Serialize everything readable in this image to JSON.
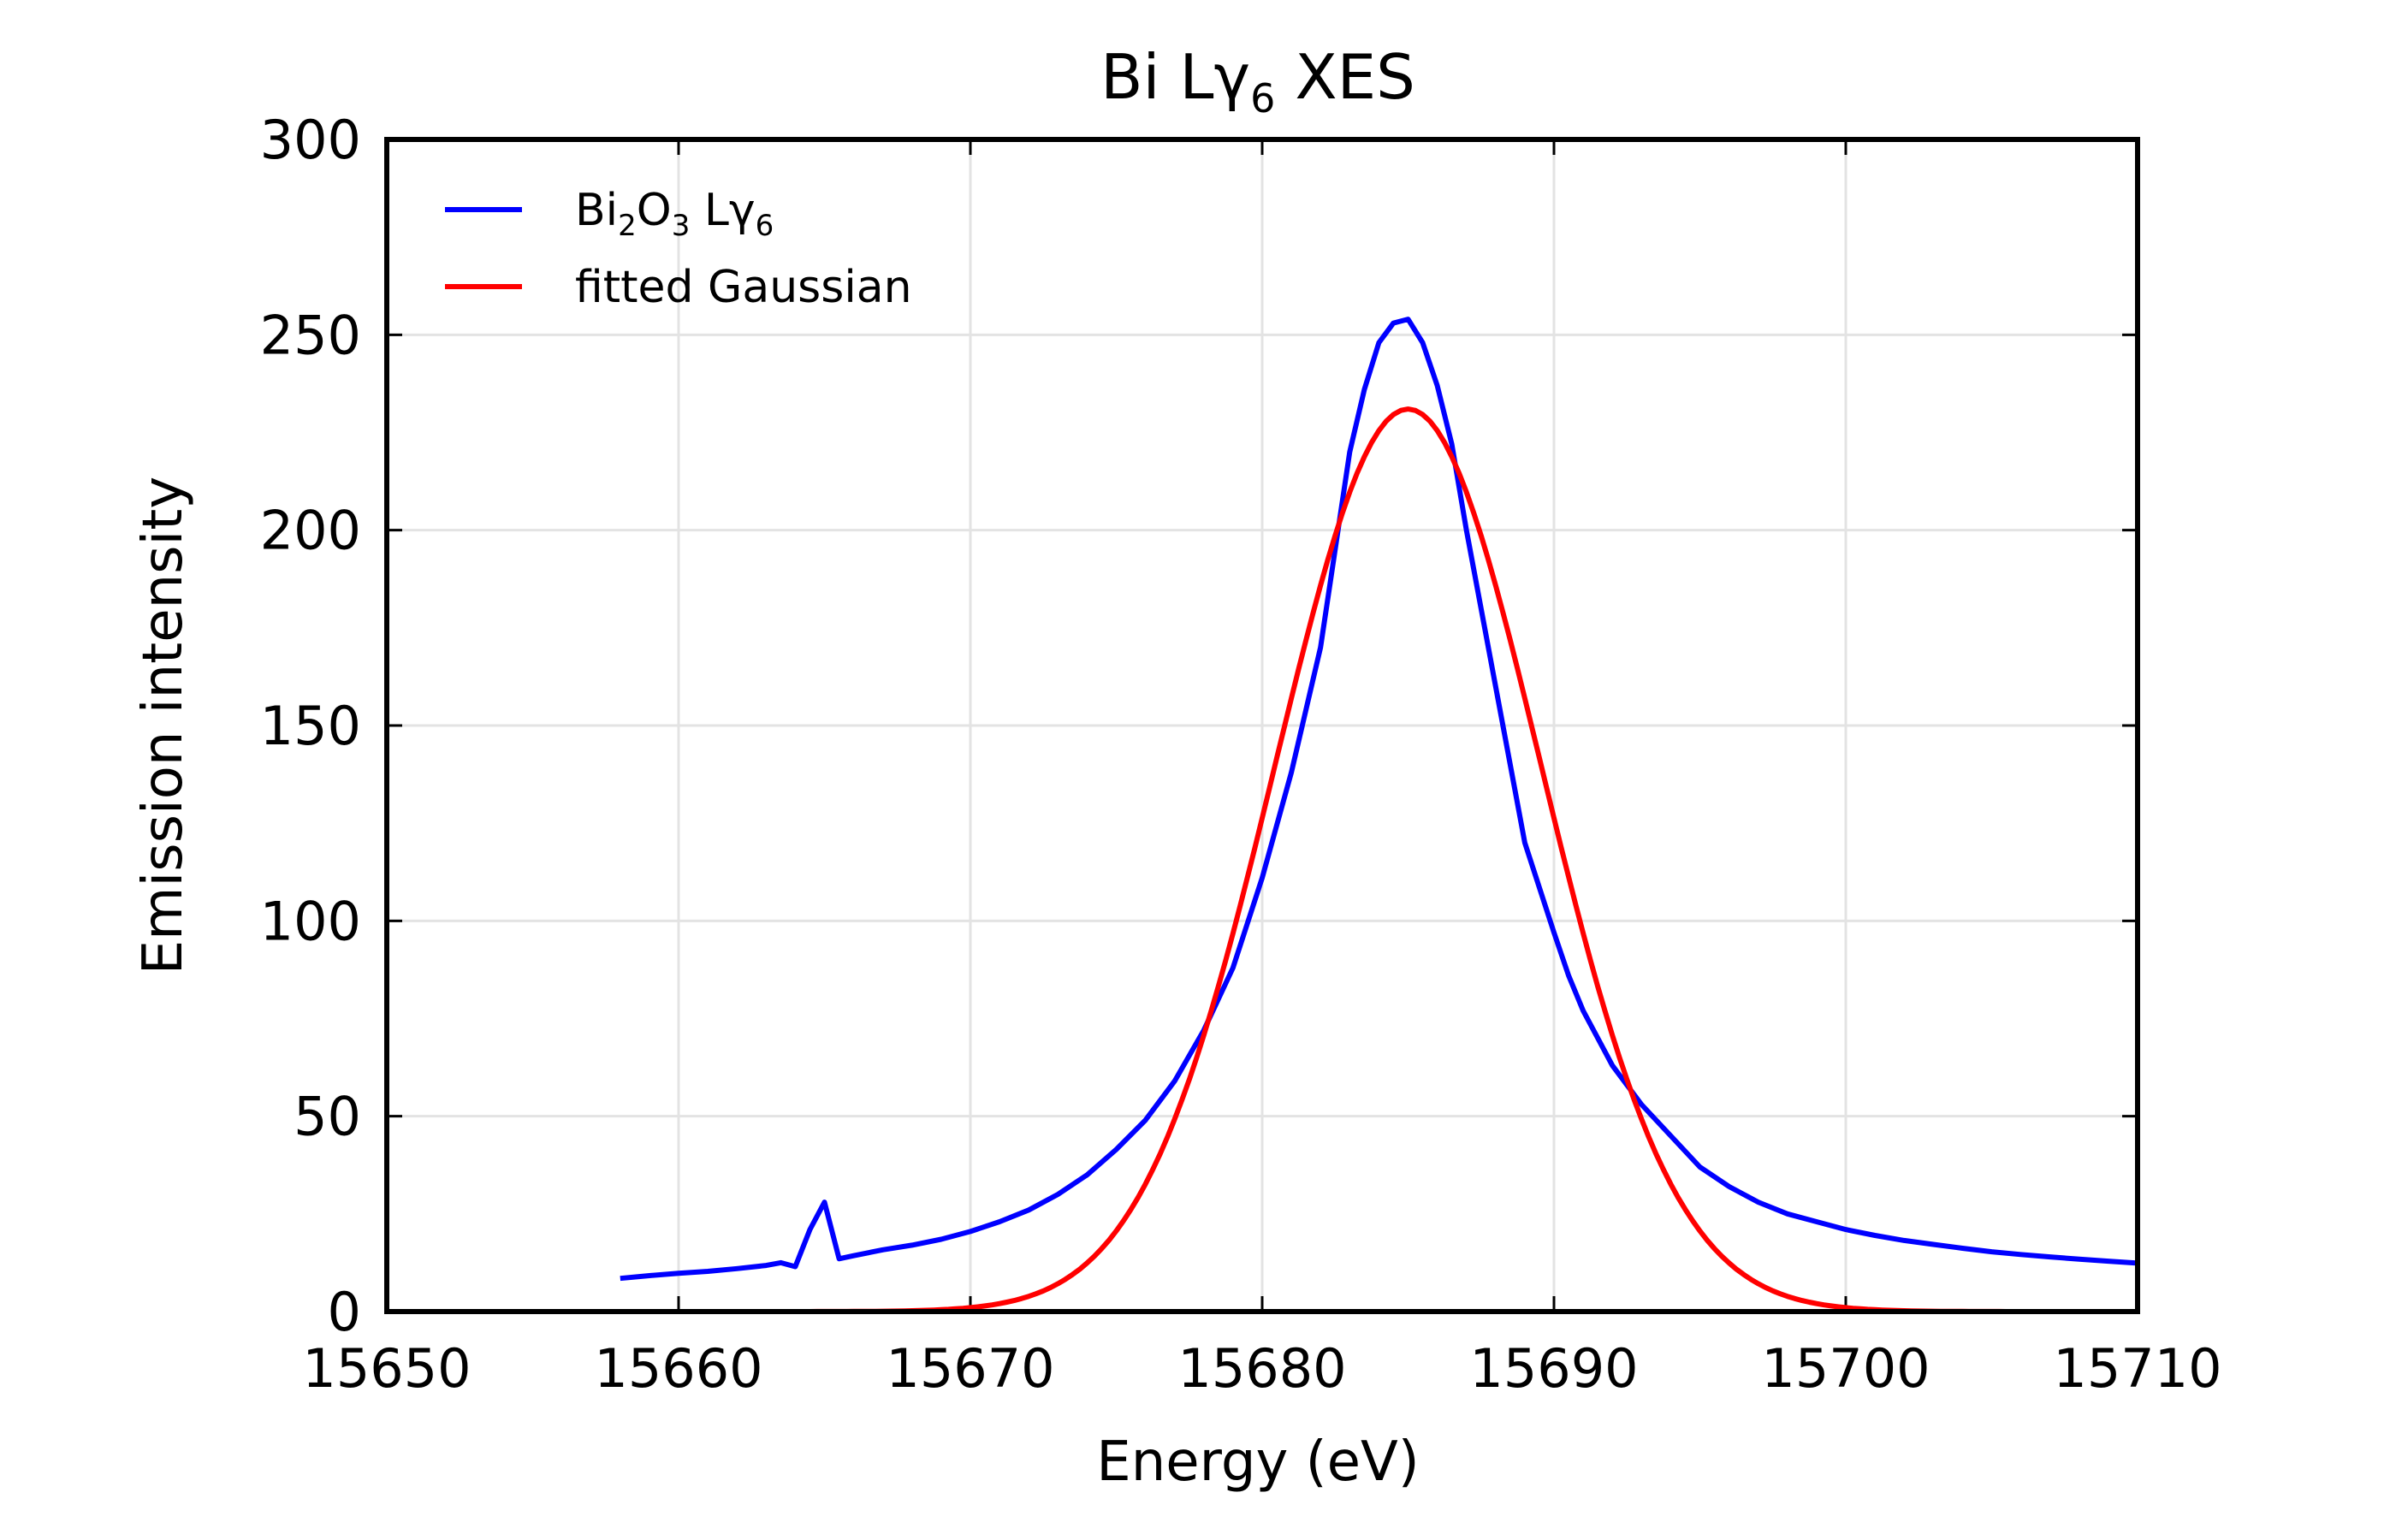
{
  "chart_data": {
    "type": "line",
    "title": {
      "pre": "Bi L",
      "symbol": "γ",
      "sub": "6",
      "post": " XES"
    },
    "xlabel": "Energy (eV)",
    "ylabel": "Emission intensity",
    "xlim": [
      15650,
      15710
    ],
    "ylim": [
      0,
      300
    ],
    "xticks": [
      15650,
      15660,
      15670,
      15680,
      15690,
      15700,
      15710
    ],
    "yticks": [
      0,
      50,
      100,
      150,
      200,
      250,
      300
    ],
    "grid": true,
    "legend_position": "top-left",
    "legend": [
      {
        "parts": [
          {
            "t": "Bi"
          },
          {
            "t": "2",
            "sub": true
          },
          {
            "t": "O"
          },
          {
            "t": "3",
            "sub": true
          },
          {
            "t": " L"
          },
          {
            "t": "γ"
          },
          {
            "t": "6",
            "sub": true
          }
        ],
        "color": "#0000ff"
      },
      {
        "parts": [
          {
            "t": "fitted Gaussian"
          }
        ],
        "color": "#ff0000"
      }
    ],
    "series": [
      {
        "color": "#0000ff",
        "x": [
          15658,
          15659,
          15660,
          15661,
          15662,
          15663,
          15663.5,
          15664,
          15664.5,
          15665,
          15665.5,
          15666,
          15667,
          15668,
          15669,
          15670,
          15671,
          15672,
          15673,
          15674,
          15675,
          15676,
          15677,
          15678,
          15679,
          15680,
          15681,
          15682,
          15683,
          15683.5,
          15684,
          15684.5,
          15685,
          15685.5,
          15686,
          15686.5,
          15687,
          15688,
          15689,
          15690,
          15690.5,
          15691,
          15692,
          15693,
          15694,
          15695,
          15696,
          15697,
          15698,
          15699,
          15700,
          15701,
          15702,
          15703,
          15704,
          15705,
          15706,
          15707,
          15708,
          15709,
          15710
        ],
        "y": [
          8.5,
          9.2,
          9.8,
          10.3,
          11.0,
          11.8,
          12.5,
          11.5,
          21,
          28,
          13.5,
          14.3,
          15.8,
          17,
          18.5,
          20.5,
          23,
          26,
          30,
          35,
          41.5,
          49,
          59,
          72,
          88,
          111,
          138,
          170,
          220,
          236,
          248,
          253,
          254,
          248,
          237,
          222,
          200,
          160,
          120,
          97,
          86,
          77,
          63,
          53,
          45,
          37,
          32,
          28,
          25,
          23,
          21,
          19.5,
          18.2,
          17.2,
          16.2,
          15.3,
          14.6,
          14,
          13.4,
          12.9,
          12.4
        ]
      },
      {
        "color": "#ff0000",
        "fit": {
          "amplitude": 231,
          "center": 15685,
          "sigma": 4.55
        },
        "x_range": [
          15650,
          15710
        ]
      }
    ]
  }
}
